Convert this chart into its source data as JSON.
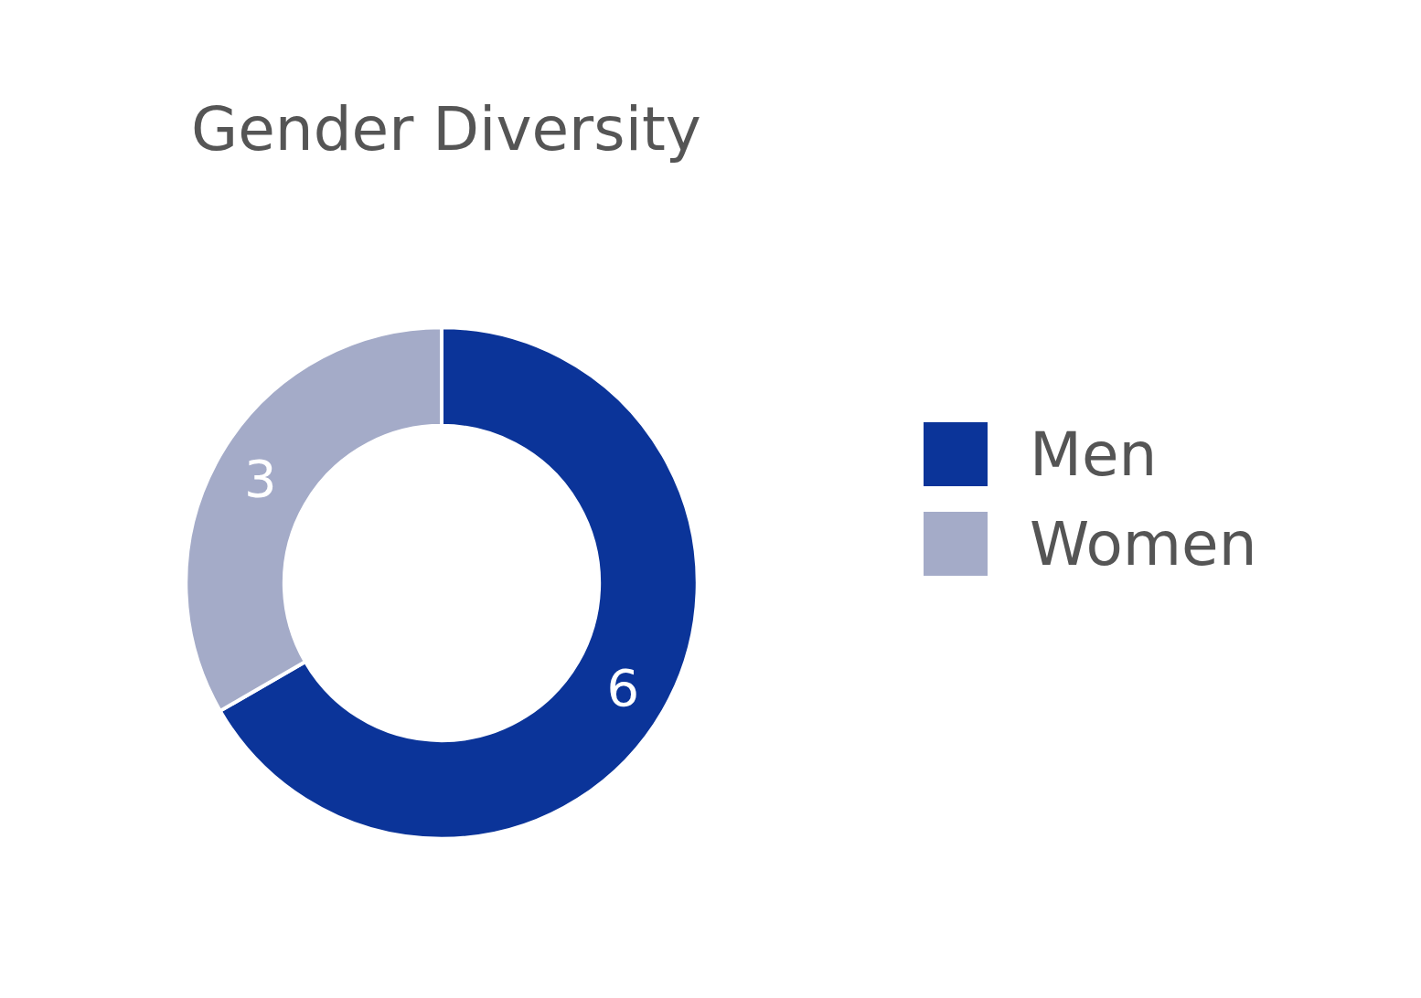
{
  "chart_data": {
    "type": "donut",
    "title": "Gender Diversity",
    "categories": [
      "Men",
      "Women"
    ],
    "values": [
      6,
      3
    ],
    "colors": [
      "#0b3499",
      "#a4abc8"
    ],
    "data_labels": true,
    "legend": "right"
  }
}
